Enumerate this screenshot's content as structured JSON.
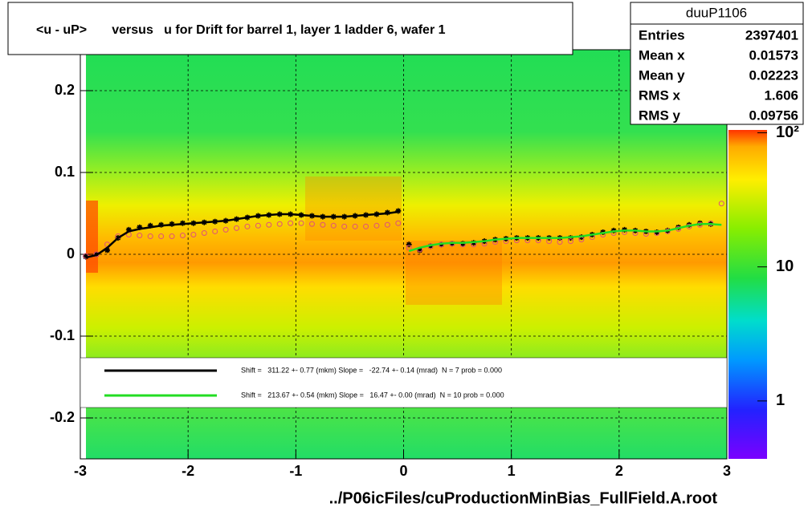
{
  "chart_data": {
    "type": "profile",
    "title": "<u - uP>       versus   u for Drift for barrel 1, layer 1 ladder 6, wafer 1",
    "x_label": "../P06icFiles/cuProductionMinBias_FullField.A.root",
    "xlim": [
      -3,
      3
    ],
    "xticks": [
      -3,
      -2,
      -1,
      0,
      1,
      2,
      3
    ],
    "ylim": [
      -0.25,
      0.25
    ],
    "yticks": [
      -0.2,
      -0.1,
      0,
      0.1,
      0.2
    ],
    "grid": true,
    "zlim": [
      0.37,
      105
    ],
    "zscale": "log",
    "zticks": [
      1,
      10,
      {
        "value": 100,
        "label": "10²"
      }
    ],
    "stats": {
      "title": "duuP1106",
      "rows": [
        [
          "Entries",
          "2397401"
        ],
        [
          "Mean x",
          "0.01573"
        ],
        [
          "Mean y",
          "0.02223"
        ],
        [
          "RMS x",
          "1.606"
        ],
        [
          "RMS y",
          "0.09756"
        ]
      ]
    },
    "x": [
      -2.95,
      -2.85,
      -2.75,
      -2.65,
      -2.55,
      -2.45,
      -2.35,
      -2.25,
      -2.15,
      -2.05,
      -1.95,
      -1.85,
      -1.75,
      -1.65,
      -1.55,
      -1.45,
      -1.35,
      -1.25,
      -1.15,
      -1.05,
      -0.95,
      -0.85,
      -0.75,
      -0.65,
      -0.55,
      -0.45,
      -0.35,
      -0.25,
      -0.15,
      -0.05,
      0.05,
      0.15,
      0.25,
      0.35,
      0.45,
      0.55,
      0.65,
      0.75,
      0.85,
      0.95,
      1.05,
      1.15,
      1.25,
      1.35,
      1.45,
      1.55,
      1.65,
      1.75,
      1.85,
      1.95,
      2.05,
      2.15,
      2.25,
      2.35,
      2.45,
      2.55,
      2.65,
      2.75,
      2.85,
      2.95
    ],
    "profiles": [
      {
        "marker": "star",
        "color": "#000000",
        "values": [
          -0.003,
          0,
          0.005,
          0.02,
          0.03,
          0.033,
          0.035,
          0.036,
          0.037,
          0.038,
          0.038,
          0.039,
          0.04,
          0.041,
          0.043,
          0.045,
          0.047,
          0.048,
          0.049,
          0.049,
          0.048,
          0.047,
          0.046,
          0.046,
          0.046,
          0.047,
          0.048,
          0.049,
          0.051,
          0.053,
          0.012,
          0.005,
          0.01,
          0.012,
          0.013,
          0.013,
          0.014,
          0.016,
          0.018,
          0.019,
          0.02,
          0.02,
          0.02,
          0.02,
          0.02,
          0.02,
          0.021,
          0.024,
          0.027,
          0.029,
          0.03,
          0.029,
          0.028,
          0.027,
          0.029,
          0.033,
          0.036,
          0.038,
          0.037,
          null
        ]
      },
      {
        "marker": "open-circle",
        "color": "#e0507a",
        "values": [
          -0.002,
          0,
          0.012,
          0.022,
          0.024,
          0.023,
          0.022,
          0.022,
          0.022,
          0.023,
          0.024,
          0.026,
          0.028,
          0.03,
          0.032,
          0.034,
          0.035,
          0.036,
          0.037,
          0.038,
          0.038,
          0.037,
          0.036,
          0.035,
          0.034,
          0.034,
          0.034,
          0.035,
          0.036,
          0.038,
          0.008,
          0.006,
          0.01,
          0.012,
          0.013,
          0.012,
          0.012,
          0.013,
          0.015,
          0.016,
          0.017,
          0.017,
          0.017,
          0.016,
          0.015,
          0.016,
          0.018,
          0.021,
          0.024,
          0.026,
          0.027,
          0.026,
          0.025,
          0.026,
          0.028,
          0.031,
          0.034,
          0.036,
          0.038,
          0.062
        ]
      }
    ],
    "series": [
      {
        "name": "Shift =   311.22 +- 0.77 (mkm) Slope =   -22.74 +- 0.14 (mrad)  N = 7 prob = 0.000",
        "color": "#000000",
        "values": [
          -0.004,
          -0.001,
          0.008,
          0.02,
          0.028,
          0.031,
          0.033,
          0.035,
          0.036,
          0.037,
          0.038,
          0.039,
          0.04,
          0.041,
          0.043,
          0.045,
          0.047,
          0.048,
          0.049,
          0.049,
          0.048,
          0.047,
          0.046,
          0.046,
          0.046,
          0.047,
          0.048,
          0.049,
          0.05,
          0.052,
          null,
          null,
          null,
          null,
          null,
          null,
          null,
          null,
          null,
          null,
          null,
          null,
          null,
          null,
          null,
          null,
          null,
          null,
          null,
          null,
          null,
          null,
          null,
          null,
          null,
          null,
          null,
          null,
          null,
          null
        ]
      },
      {
        "name": "Shift =   213.67 +- 0.54 (mkm) Slope =   16.47 +- 0.00 (mrad)  N = 10 prob = 0.000",
        "color": "#22dd22",
        "values": [
          null,
          null,
          null,
          null,
          null,
          null,
          null,
          null,
          null,
          null,
          null,
          null,
          null,
          null,
          null,
          null,
          null,
          null,
          null,
          null,
          null,
          null,
          null,
          null,
          null,
          null,
          null,
          null,
          null,
          null,
          0.004,
          0.008,
          0.011,
          0.013,
          0.014,
          0.014,
          0.015,
          0.016,
          0.018,
          0.019,
          0.02,
          0.02,
          0.02,
          0.02,
          0.02,
          0.021,
          0.022,
          0.024,
          0.026,
          0.028,
          0.029,
          0.029,
          0.028,
          0.028,
          0.029,
          0.032,
          0.035,
          0.037,
          0.037,
          0.036
        ]
      }
    ]
  }
}
